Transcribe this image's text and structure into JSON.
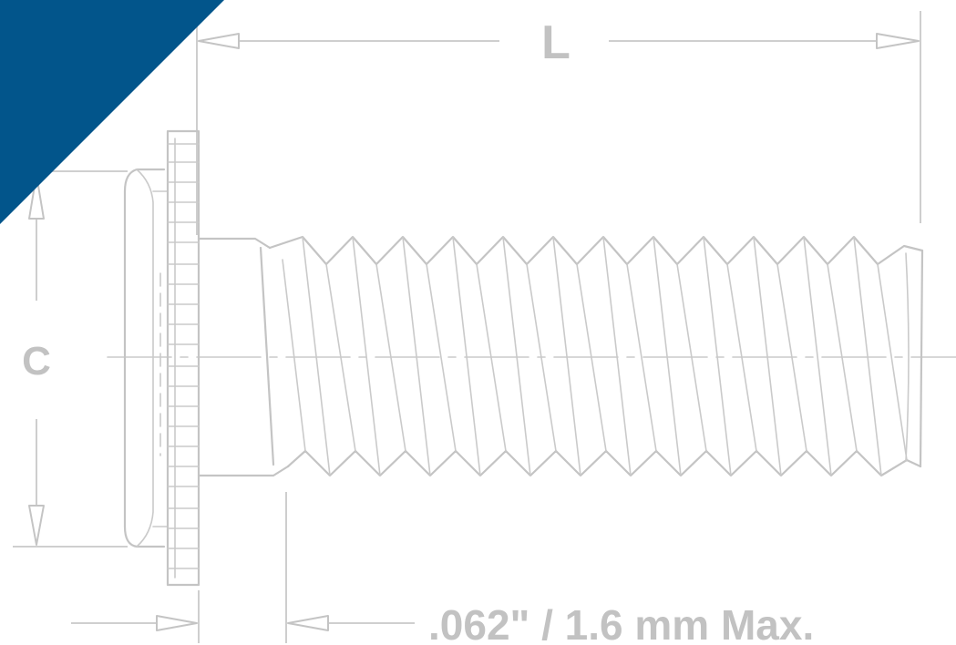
{
  "labels": {
    "length": "L",
    "diameter": "C",
    "clearance": ".062\" / 1.6 mm Max."
  },
  "colors": {
    "corner_banner": "#02558B",
    "line_art": "#C4C4C4",
    "label_text": "#C2C2C2",
    "background": "#FFFFFF"
  }
}
